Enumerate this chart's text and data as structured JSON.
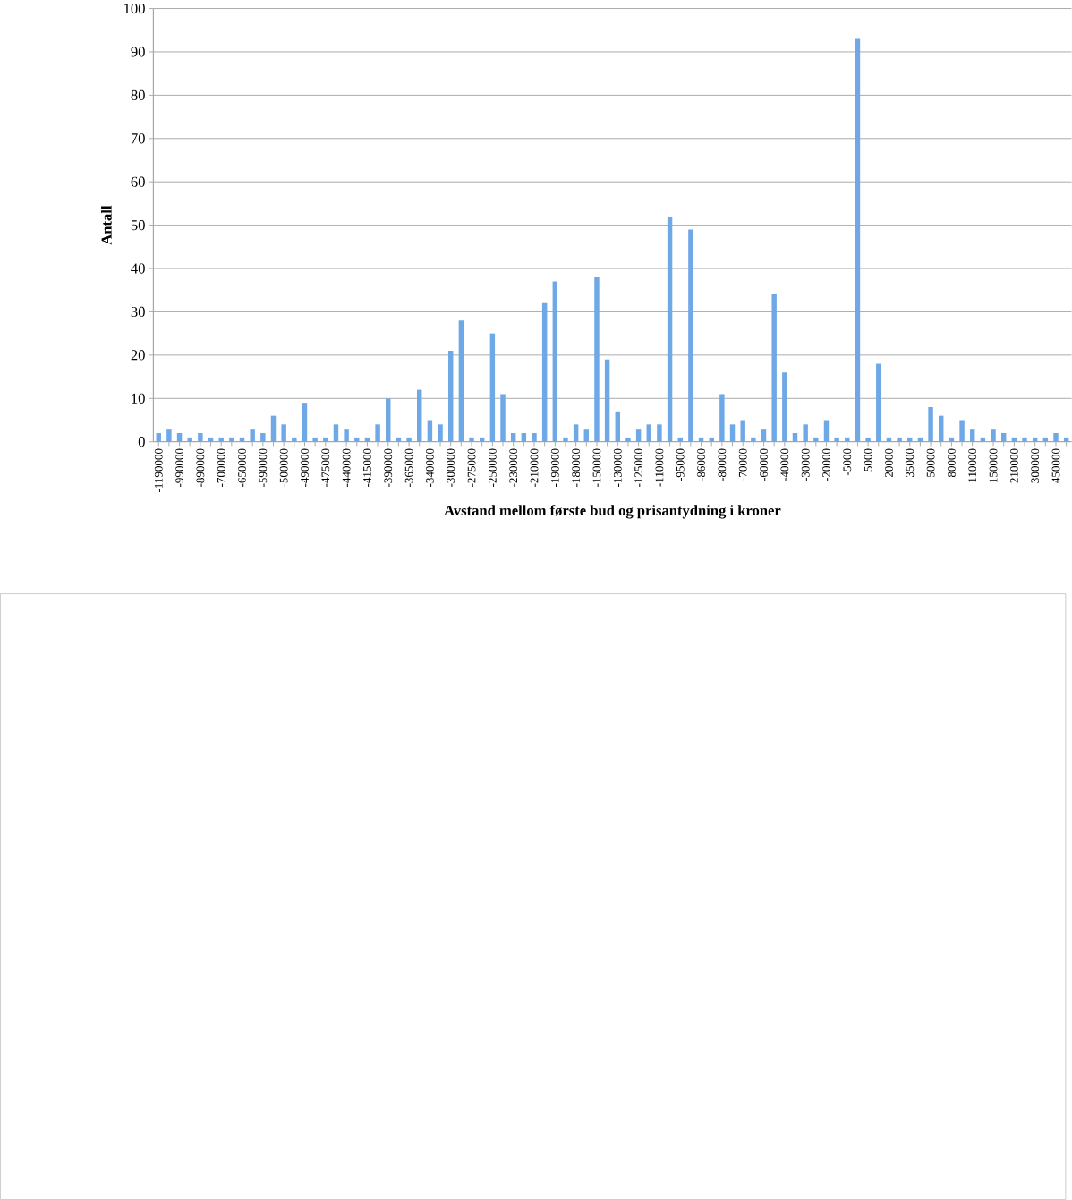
{
  "chart_data": {
    "type": "bar",
    "xlabel": "Avstand mellom første bud og prisantydning i kroner",
    "ylabel": "Antall",
    "categories": [
      "-1190000",
      null,
      "-990000",
      null,
      "-890000",
      null,
      "-700000",
      null,
      "-650000",
      null,
      "-590000",
      null,
      "-500000",
      null,
      "-490000",
      null,
      "-475000",
      null,
      "-440000",
      null,
      "-415000",
      null,
      "-390000",
      null,
      "-365000",
      null,
      "-340000",
      null,
      "-300000",
      null,
      "-275000",
      null,
      "-250000",
      null,
      "-230000",
      null,
      "-210000",
      null,
      "-190000",
      null,
      "-180000",
      null,
      "-150000",
      null,
      "-130000",
      null,
      "-125000",
      null,
      "-110000",
      null,
      "-95000",
      null,
      "-86000",
      null,
      "-80000",
      null,
      "-70000",
      null,
      "-60000",
      null,
      "-40000",
      null,
      "-30000",
      null,
      "-20000",
      null,
      "-5000",
      null,
      "5000",
      null,
      "20000",
      null,
      "35000",
      null,
      "50000",
      null,
      "80000",
      null,
      "110000",
      null,
      "150000",
      null,
      "210000",
      null,
      "300000",
      null,
      "450000",
      null
    ],
    "values": [
      2,
      3,
      2,
      1,
      2,
      1,
      1,
      1,
      1,
      3,
      2,
      6,
      4,
      1,
      9,
      1,
      1,
      4,
      3,
      1,
      1,
      4,
      10,
      1,
      1,
      12,
      5,
      4,
      21,
      28,
      1,
      1,
      25,
      11,
      2,
      2,
      2,
      32,
      37,
      1,
      4,
      3,
      38,
      19,
      7,
      1,
      3,
      4,
      4,
      52,
      1,
      49,
      1,
      1,
      11,
      4,
      5,
      1,
      3,
      34,
      16,
      2,
      4,
      1,
      5,
      1,
      1,
      93,
      1,
      18,
      1,
      1,
      1,
      1,
      8,
      6,
      1,
      5,
      3,
      1,
      3,
      2,
      1,
      1,
      1,
      1,
      2,
      1
    ],
    "color": "#6fa8e6",
    "ylim": [
      0,
      100
    ],
    "yticks": [
      0,
      10,
      20,
      30,
      40,
      50,
      60,
      70,
      80,
      90,
      100
    ],
    "grid": "y"
  }
}
